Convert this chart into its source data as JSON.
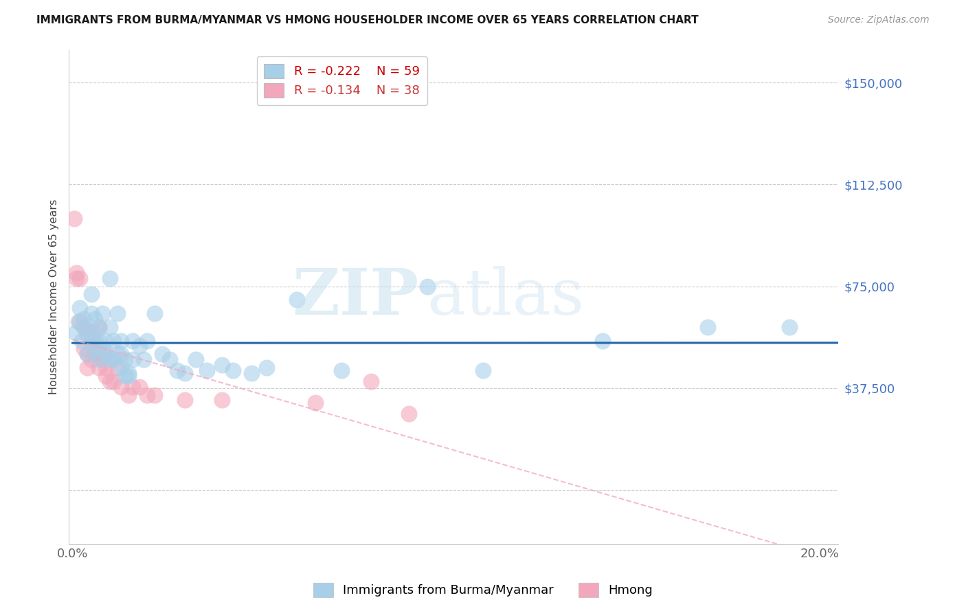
{
  "title": "IMMIGRANTS FROM BURMA/MYANMAR VS HMONG HOUSEHOLDER INCOME OVER 65 YEARS CORRELATION CHART",
  "source": "Source: ZipAtlas.com",
  "ylabel": "Householder Income Over 65 years",
  "xlim": [
    -0.001,
    0.205
  ],
  "ylim": [
    -20000,
    162000
  ],
  "yticks": [
    0,
    37500,
    75000,
    112500,
    150000
  ],
  "xticks": [
    0.0,
    0.025,
    0.05,
    0.075,
    0.1,
    0.125,
    0.15,
    0.175,
    0.2
  ],
  "blue_color": "#a8cfe8",
  "pink_color": "#f2a7bc",
  "blue_line_color": "#2166ac",
  "pink_line_color": "#f2a7bc",
  "tick_color": "#4472c4",
  "legend_R_blue": "-0.222",
  "legend_N_blue": "59",
  "legend_R_pink": "-0.134",
  "legend_N_pink": "38",
  "blue_points_x": [
    0.0008,
    0.0015,
    0.002,
    0.0025,
    0.003,
    0.003,
    0.004,
    0.004,
    0.005,
    0.005,
    0.005,
    0.006,
    0.006,
    0.006,
    0.007,
    0.007,
    0.007,
    0.008,
    0.008,
    0.009,
    0.009,
    0.01,
    0.01,
    0.01,
    0.011,
    0.011,
    0.012,
    0.012,
    0.013,
    0.013,
    0.013,
    0.014,
    0.014,
    0.015,
    0.015,
    0.016,
    0.016,
    0.018,
    0.019,
    0.02,
    0.022,
    0.024,
    0.026,
    0.028,
    0.03,
    0.033,
    0.036,
    0.04,
    0.043,
    0.048,
    0.052,
    0.06,
    0.072,
    0.095,
    0.11,
    0.142,
    0.17,
    0.192
  ],
  "blue_points_y": [
    58000,
    62000,
    67000,
    55000,
    60000,
    63000,
    50000,
    57000,
    65000,
    55000,
    72000,
    52000,
    58000,
    63000,
    48000,
    55000,
    60000,
    52000,
    65000,
    55000,
    50000,
    60000,
    48000,
    78000,
    55000,
    48000,
    65000,
    50000,
    45000,
    55000,
    50000,
    42000,
    48000,
    43000,
    42000,
    48000,
    55000,
    53000,
    48000,
    55000,
    65000,
    50000,
    48000,
    44000,
    43000,
    48000,
    44000,
    46000,
    44000,
    43000,
    45000,
    70000,
    44000,
    75000,
    44000,
    55000,
    60000,
    60000
  ],
  "pink_points_x": [
    0.0005,
    0.001,
    0.001,
    0.002,
    0.002,
    0.003,
    0.003,
    0.004,
    0.004,
    0.004,
    0.005,
    0.005,
    0.005,
    0.006,
    0.006,
    0.007,
    0.007,
    0.007,
    0.008,
    0.008,
    0.009,
    0.009,
    0.01,
    0.01,
    0.011,
    0.012,
    0.013,
    0.015,
    0.016,
    0.018,
    0.02,
    0.022,
    0.03,
    0.04,
    0.065,
    0.08,
    0.09
  ],
  "pink_points_y": [
    100000,
    80000,
    78000,
    78000,
    62000,
    60000,
    52000,
    58000,
    50000,
    45000,
    58000,
    55000,
    48000,
    50000,
    55000,
    50000,
    45000,
    60000,
    50000,
    48000,
    45000,
    42000,
    48000,
    40000,
    40000,
    45000,
    38000,
    35000,
    38000,
    38000,
    35000,
    35000,
    33000,
    33000,
    32000,
    40000,
    28000
  ]
}
